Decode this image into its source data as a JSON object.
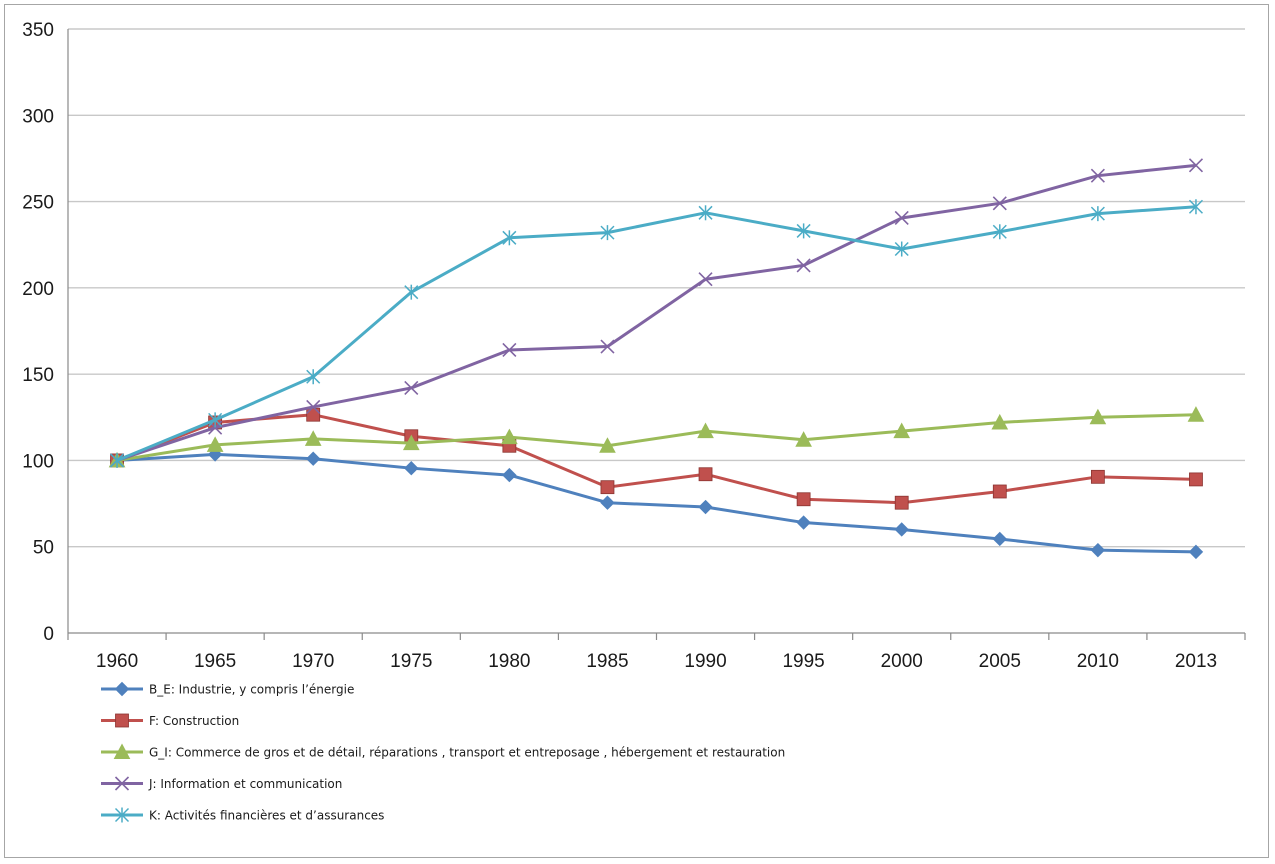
{
  "chart_data": {
    "type": "line",
    "title": "",
    "xlabel": "",
    "ylabel": "",
    "categories": [
      "1960",
      "1965",
      "1970",
      "1975",
      "1980",
      "1985",
      "1990",
      "1995",
      "2000",
      "2005",
      "2010",
      "2013"
    ],
    "yticks": [
      "0",
      "50",
      "100",
      "150",
      "200",
      "250",
      "300",
      "350"
    ],
    "ylim": [
      0,
      350
    ],
    "grid": true,
    "legend_position": "bottom",
    "series": [
      {
        "name": "B_E: Industrie, y compris l’énergie",
        "color": "#4f81bd",
        "marker": "diamond",
        "values": [
          100,
          103.5,
          101,
          95.5,
          91.5,
          75.5,
          73,
          64,
          60,
          54.5,
          48,
          47
        ]
      },
      {
        "name": "F: Construction",
        "color": "#c0504d",
        "marker": "square",
        "values": [
          100,
          122,
          126.5,
          114,
          108.5,
          84.5,
          92,
          77.5,
          75.5,
          82,
          90.5,
          89
        ]
      },
      {
        "name": "G_I: Commerce de gros et de détail, réparations , transport et entreposage , hébergement et restauration",
        "color": "#9bbb59",
        "marker": "triangle",
        "values": [
          100,
          109,
          112.5,
          110,
          113.5,
          108.5,
          117,
          112,
          117,
          122,
          125,
          126.5
        ]
      },
      {
        "name": "J: Information et communication",
        "color": "#8064a2",
        "marker": "x",
        "values": [
          100,
          119,
          131,
          142,
          164,
          166,
          205,
          213,
          240.5,
          249,
          265,
          271
        ]
      },
      {
        "name": "K: Activités financières et d’assurances",
        "color": "#4bacc6",
        "marker": "star",
        "values": [
          100,
          123.5,
          148.5,
          197.5,
          229,
          232,
          243.5,
          233,
          222.5,
          232.5,
          243,
          247
        ]
      }
    ]
  }
}
